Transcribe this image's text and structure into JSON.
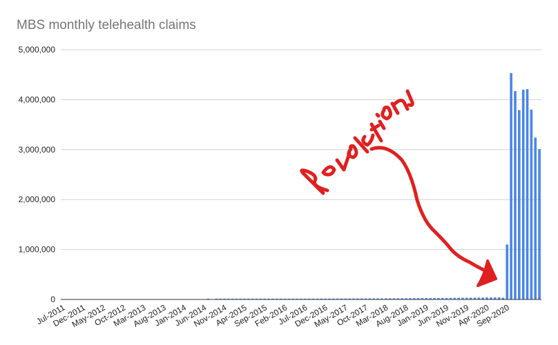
{
  "chart_data": {
    "type": "bar",
    "title": "MBS monthly telehealth claims",
    "xlabel": "",
    "ylabel": "",
    "ylim": [
      0,
      5000000
    ],
    "y_ticks": [
      "0",
      "1,000,000",
      "2,000,000",
      "3,000,000",
      "4,000,000",
      "5,000,000"
    ],
    "y_tick_values": [
      0,
      1000000,
      2000000,
      3000000,
      4000000,
      5000000
    ],
    "x_tick_labels": [
      "Jul-2011",
      "Dec-2011",
      "May-2012",
      "Oct-2012",
      "Mar-2013",
      "Aug-2013",
      "Jan-2014",
      "Jun-2014",
      "Nov-2014",
      "Apr-2015",
      "Sep-2015",
      "Feb-2016",
      "Jul-2016",
      "Dec-2016",
      "May-2017",
      "Oct-2017",
      "Mar-2018",
      "Aug-2018",
      "Jan-2019",
      "Jun-2019",
      "Nov-2019",
      "Apr-2020",
      "Sep-2020"
    ],
    "grid": true,
    "legend": "none",
    "bar_color": "#4a86e8",
    "series": [
      {
        "start_month": "Jul-2011",
        "values": [
          0,
          0,
          0,
          0,
          0,
          0,
          0,
          0,
          0,
          0,
          0,
          0,
          0,
          0,
          0,
          0,
          0,
          0,
          0,
          0,
          0,
          0,
          0,
          0,
          0,
          0,
          0,
          0,
          0,
          0,
          0,
          0,
          0,
          0,
          0,
          0,
          12000,
          0,
          6000,
          8000,
          9000,
          10000,
          11000,
          11000,
          12000,
          12000,
          13000,
          13000,
          13000,
          13000,
          14000,
          14000,
          14000,
          15000,
          15000,
          15000,
          15000,
          16000,
          16000,
          16000,
          17000,
          17000,
          17000,
          17000,
          18000,
          18000,
          18000,
          18000,
          19000,
          19000,
          19000,
          19000,
          20000,
          20000,
          20000,
          20000,
          21000,
          21000,
          21000,
          21000,
          22000,
          22000,
          22000,
          23000,
          24000,
          24000,
          25000,
          25000,
          26000,
          27000,
          27000,
          28000,
          29000,
          29000,
          30000,
          30000,
          31000,
          32000,
          33000,
          34000,
          35000,
          35000,
          36000,
          37000,
          38000,
          40000,
          40000,
          41000,
          42000,
          35000,
          1100000,
          4530000,
          4170000,
          3790000,
          4200000,
          4210000,
          3800000,
          3240000,
          3010000
        ]
      }
    ]
  },
  "annotation": {
    "text": "Revolution",
    "color": "#e02020"
  }
}
